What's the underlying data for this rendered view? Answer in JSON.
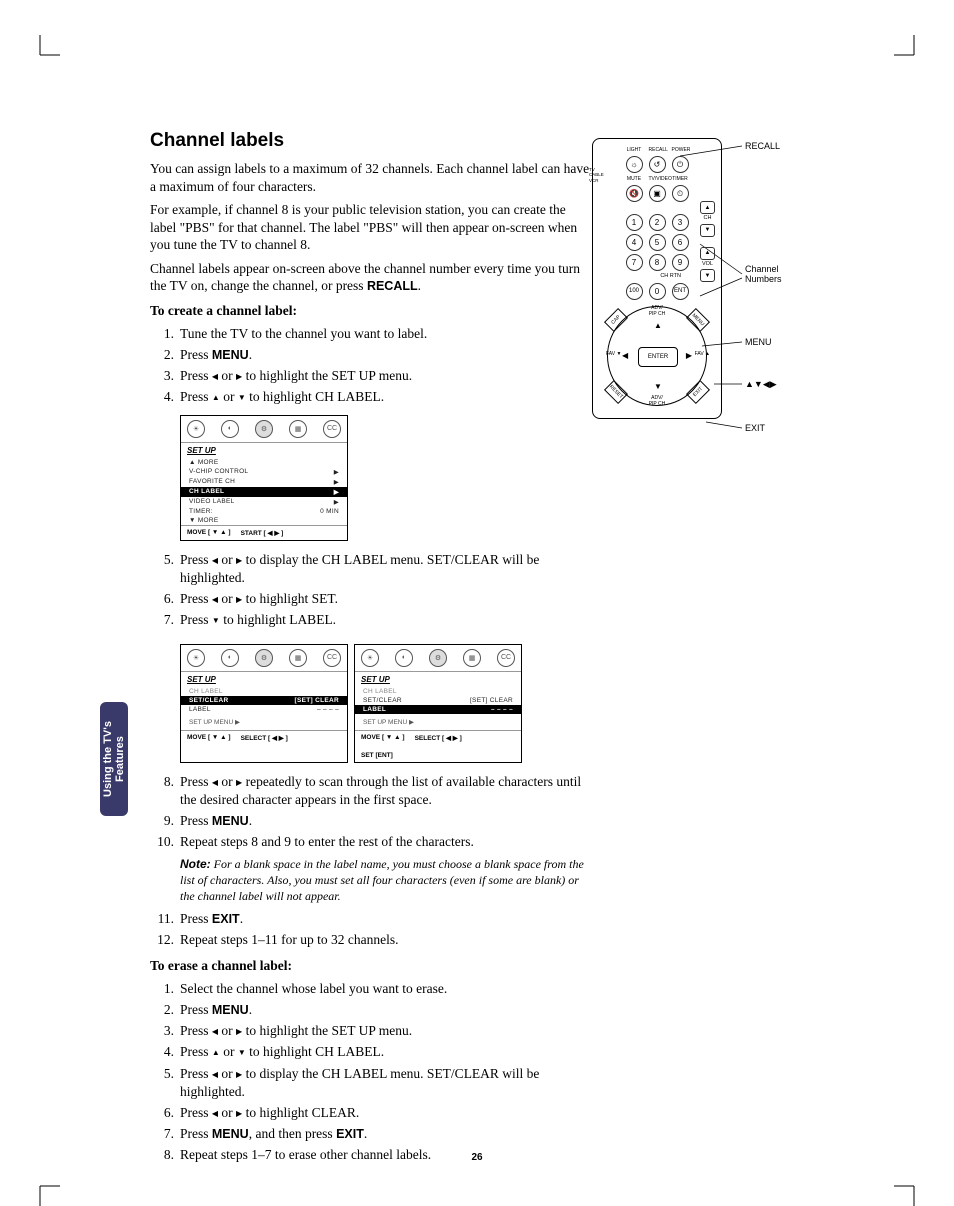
{
  "page_number": "26",
  "side_tab": "Using the TV's\nFeatures",
  "heading": "Channel labels",
  "intro": [
    "You can assign labels to a maximum of 32 channels. Each channel label can have a maximum of four characters.",
    "For example, if channel 8 is your public television station, you can create the label \"PBS\" for that channel. The label \"PBS\" will then appear on-screen when you tune the TV to channel 8."
  ],
  "intro_recall_line": "Channel labels appear on-screen above the channel number every time you turn the TV on, change the channel, or press ",
  "recall_btn": "RECALL",
  "create_head": "To create a channel label:",
  "create_steps": {
    "s1": "Tune the TV to the channel you want to label.",
    "s2_a": "Press ",
    "s2_b": "MENU",
    "s2_c": ".",
    "s3_a": "Press ",
    "s3_b": " or ",
    "s3_c": " to highlight the SET UP menu.",
    "s4_a": "Press ",
    "s4_b": " or ",
    "s4_c": " to highlight CH LABEL.",
    "s5_a": "Press ",
    "s5_b": " or ",
    "s5_c": " to display the CH LABEL menu. SET/CLEAR will be highlighted.",
    "s6_a": "Press ",
    "s6_b": " or ",
    "s6_c": " to highlight SET.",
    "s7_a": "Press ",
    "s7_b": " to highlight LABEL.",
    "s8_a": "Press ",
    "s8_b": " or ",
    "s8_c": " repeatedly to scan through the list of available characters until the desired character appears in the first space.",
    "s9_a": "Press ",
    "s9_b": "MENU",
    "s9_c": ".",
    "s10": "Repeat steps 8 and 9 to enter the rest of the characters.",
    "s11_a": "Press ",
    "s11_b": "EXIT",
    "s11_c": ".",
    "s12": "Repeat steps 1–11 for up to 32 channels."
  },
  "note_label": "Note:",
  "note_text": " For a blank space in the label name, you must choose a blank space from the list of characters. Also, you must set all four characters (even if some are blank) or the channel label will not appear.",
  "erase_head": "To erase a channel label:",
  "erase_steps": {
    "e1": "Select the channel whose label you want to erase.",
    "e2_a": "Press ",
    "e2_b": "MENU",
    "e2_c": ".",
    "e3_a": "Press ",
    "e3_b": " or ",
    "e3_c": " to highlight the SET UP menu.",
    "e4_a": "Press ",
    "e4_b": " or ",
    "e4_c": " to highlight CH LABEL.",
    "e5_a": "Press ",
    "e5_b": " or ",
    "e5_c": " to display the CH LABEL menu. SET/CLEAR will be highlighted.",
    "e6_a": "Press ",
    "e6_b": " or ",
    "e6_c": " to highlight CLEAR.",
    "e7_a": "Press ",
    "e7_b": "MENU",
    "e7_c": ", and then press ",
    "e7_d": "EXIT",
    "e7_e": ".",
    "e8": "Repeat steps 1–7 to erase other channel labels."
  },
  "osd1": {
    "title": "SET UP",
    "rows": [
      {
        "l": "▲ MORE",
        "r": ""
      },
      {
        "l": "V-CHIP CONTROL",
        "r": "▶"
      },
      {
        "l": "FAVORITE CH",
        "r": "▶"
      },
      {
        "l": "CH LABEL",
        "r": "▶",
        "hl": true
      },
      {
        "l": "VIDEO LABEL",
        "r": "▶"
      },
      {
        "l": "TIMER:",
        "r": "0 MIN"
      },
      {
        "l": "▼ MORE",
        "r": ""
      }
    ],
    "footer": [
      "MOVE [ ▼ ▲ ]",
      "START [ ◀ ▶ ]"
    ]
  },
  "osd2": {
    "title": "SET UP",
    "sub": "CH LABEL",
    "rows": [
      {
        "l": "SET/CLEAR",
        "r": "[SET]  CLEAR",
        "hl": true
      },
      {
        "l": "LABEL",
        "r": "– – – –"
      }
    ],
    "submenu": "SET UP MENU ▶",
    "footer": [
      "MOVE [ ▼ ▲ ]",
      "SELECT [ ◀ ▶ ]"
    ]
  },
  "osd3": {
    "title": "SET UP",
    "sub": "CH LABEL",
    "rows": [
      {
        "l": "SET/CLEAR",
        "r": "[SET]  CLEAR"
      },
      {
        "l": "LABEL",
        "r": "– – – –",
        "hl": true
      }
    ],
    "submenu": "SET UP MENU ▶",
    "footer": [
      "MOVE [ ▼ ▲ ]",
      "SELECT [ ◀ ▶ ]",
      "SET [ENT]"
    ]
  },
  "remote": {
    "top_labels": [
      "LIGHT",
      "RECALL",
      "POWER"
    ],
    "row2_labels": [
      "MUTE",
      "TV/VIDEO",
      "TIMER"
    ],
    "switch": "TV\nCABLE\nVCR",
    "numbers": [
      "1",
      "2",
      "3",
      "4",
      "5",
      "6",
      "7",
      "8",
      "9",
      "100",
      "0",
      "ENT"
    ],
    "ch": "CH",
    "vol": "VOL",
    "chrtn": "CH RTN",
    "nav": {
      "center": "ENTER",
      "top": "ADV/\nPIP CH",
      "bottom": "ADV/\nPIP CH",
      "left": "FAV ▼",
      "right": "FAV ▲"
    },
    "diag": {
      "tl": "CAP",
      "tr": "MENU",
      "bl": "RESET",
      "br": "EXIT"
    }
  },
  "callouts": {
    "recall": "RECALL",
    "numbers": "Channel\nNumbers",
    "menu": "MENU",
    "arrows": "▲▼◀▶",
    "exit": "EXIT"
  },
  "style": {
    "hl_bg": "#000000",
    "hl_fg": "#ffffff",
    "sidebar_bg": "#3a3a6a"
  }
}
